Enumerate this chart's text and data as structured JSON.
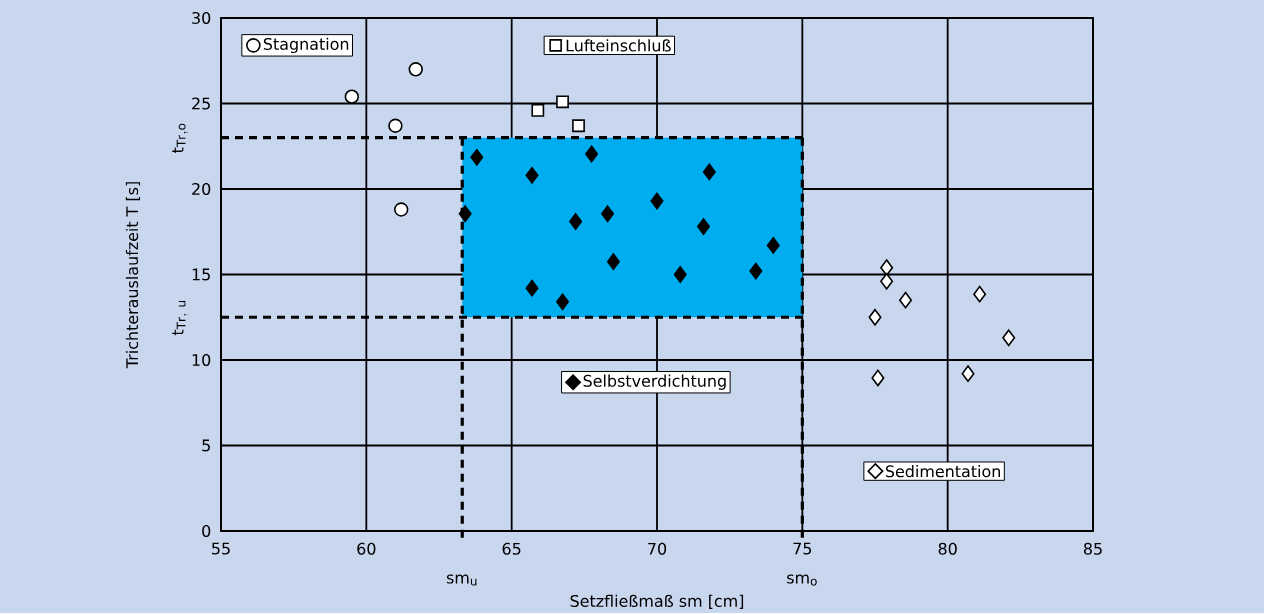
{
  "chart_data": {
    "type": "scatter",
    "xlabel": "Setzfließmaß sm [cm]",
    "ylabel": "Trichterauslaufzeit T [s]",
    "xlim": [
      55,
      85
    ],
    "ylim": [
      0,
      30
    ],
    "xticks": [
      55,
      60,
      65,
      70,
      75,
      80,
      85
    ],
    "yticks": [
      0,
      5,
      10,
      15,
      20,
      25,
      30
    ],
    "grid": true,
    "legend": "top left",
    "series": [
      {
        "name": "Stagnation",
        "color": "#ffffff",
        "marker": "circle",
        "x": [
          59.5,
          61.7,
          61.0,
          61.2
        ],
        "values": [
          25.4,
          27.0,
          23.7,
          18.8
        ]
      },
      {
        "name": "Lufteinschluß",
        "color": "#ffffff",
        "marker": "square",
        "x": [
          65.9,
          66.75,
          67.3
        ],
        "values": [
          24.6,
          25.1,
          23.7
        ]
      },
      {
        "name": "Selbstverdichtung",
        "color": "#000000",
        "marker": "diamond",
        "x": [
          63.8,
          65.7,
          67.75,
          71.8,
          63.4,
          70.0,
          67.2,
          68.3,
          71.6,
          74.0,
          68.5,
          70.8,
          73.4,
          65.7,
          66.75
        ],
        "values": [
          21.85,
          20.8,
          22.05,
          21.0,
          18.55,
          19.3,
          18.1,
          18.55,
          17.8,
          16.7,
          15.75,
          15.0,
          15.2,
          14.2,
          13.4
        ]
      },
      {
        "name": "Sedimentation",
        "color": "#ffffff",
        "marker": "diamond",
        "x": [
          77.9,
          77.9,
          78.55,
          77.5,
          81.1,
          82.1,
          77.6,
          80.7
        ],
        "values": [
          15.4,
          14.6,
          13.5,
          12.5,
          13.85,
          11.3,
          8.95,
          9.2
        ]
      }
    ],
    "ref_lines": [
      {
        "axis": "x",
        "value": 63.3,
        "label": "\\mathrm{sm}_{\\mathrm{u}}",
        "line_style": "dashed"
      },
      {
        "axis": "x",
        "value": 75,
        "label": "\\mathrm{sm}_{\\mathrm{o}}",
        "line_style": "dashed"
      },
      {
        "axis": "y",
        "value": 23,
        "label": "\\mathrm{t}_{\\mathrm{Tr,o}}",
        "line_style": "dashed"
      },
      {
        "axis": "y",
        "value": 12.5,
        "label": "\\mathrm{t}_{\\mathrm{Tr,\\ u}}",
        "line_style": "dashed"
      }
    ],
    "bands": [
      {
        "axis": "x",
        "from": 63.3,
        "to": 75,
        "color": "#00adef"
      }
    ]
  }
}
